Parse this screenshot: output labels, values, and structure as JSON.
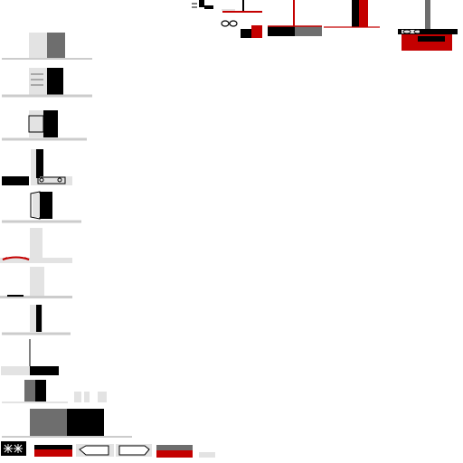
{
  "colors": {
    "background": "#ffffff",
    "light": "#e3e3e3",
    "mid": "#6e6e6e",
    "dark": "#000000",
    "accent": "#c40000",
    "line": "#cccccc"
  },
  "sprites": [
    {
      "name": "hood-icon-top-1"
    },
    {
      "name": "hood-icon-top-2"
    },
    {
      "name": "hood-icon-top-3"
    },
    {
      "name": "hood-icon-top-4"
    },
    {
      "name": "hood-icon-top-5"
    },
    {
      "name": "hood-icon-row-1"
    },
    {
      "name": "hood-icon-row-2"
    },
    {
      "name": "hood-icon-row-3"
    },
    {
      "name": "hood-icon-row-4"
    },
    {
      "name": "hood-icon-row-5"
    },
    {
      "name": "hood-icon-row-6"
    },
    {
      "name": "hood-icon-row-7"
    },
    {
      "name": "hood-icon-row-8"
    },
    {
      "name": "hood-icon-row-9"
    },
    {
      "name": "hood-icon-row-10"
    },
    {
      "name": "hood-icon-row-11"
    },
    {
      "name": "hood-icon-bottom-1"
    },
    {
      "name": "hood-icon-bottom-2"
    },
    {
      "name": "hood-icon-bottom-3"
    },
    {
      "name": "hood-icon-bottom-4"
    },
    {
      "name": "hood-icon-bottom-5"
    },
    {
      "name": "hood-icon-bottom-6"
    }
  ]
}
